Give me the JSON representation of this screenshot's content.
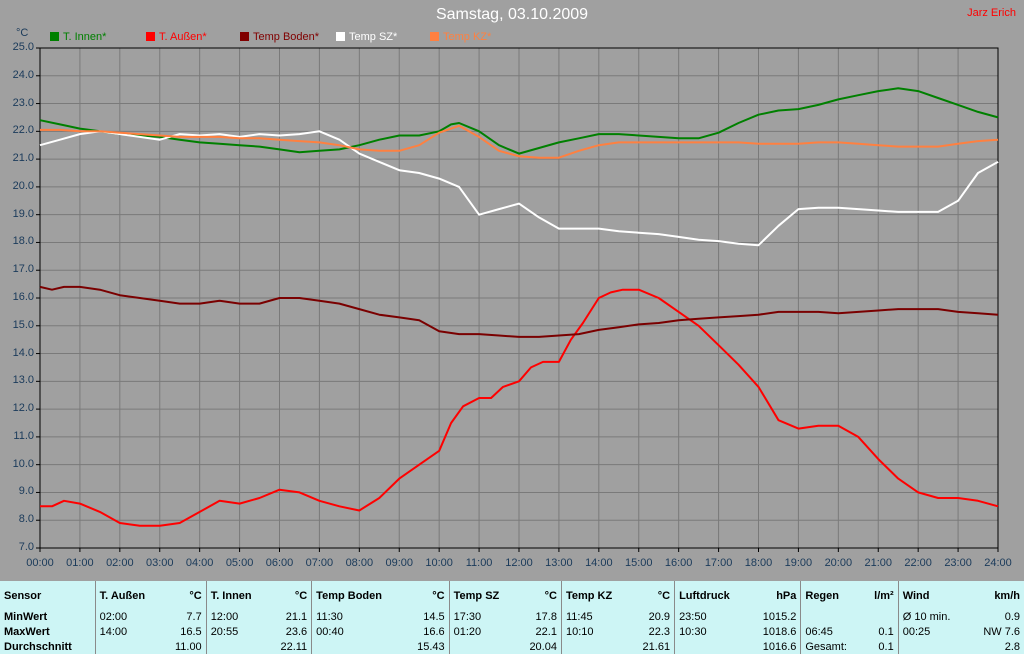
{
  "title": "Samstag, 03.10.2009",
  "author": "Jarz Erich",
  "chart_data": {
    "type": "line",
    "ylabel": "°C",
    "ylim": [
      7.0,
      25.0
    ],
    "yticks": [
      "7.0",
      "8.0",
      "9.0",
      "10.0",
      "11.0",
      "12.0",
      "13.0",
      "14.0",
      "15.0",
      "16.0",
      "17.0",
      "18.0",
      "19.0",
      "20.0",
      "21.0",
      "22.0",
      "23.0",
      "24.0",
      "25.0"
    ],
    "xlim": [
      0,
      24
    ],
    "xticks": [
      "00:00",
      "01:00",
      "02:00",
      "03:00",
      "04:00",
      "05:00",
      "06:00",
      "07:00",
      "08:00",
      "09:00",
      "10:00",
      "11:00",
      "12:00",
      "13:00",
      "14:00",
      "15:00",
      "16:00",
      "17:00",
      "18:00",
      "19:00",
      "20:00",
      "21:00",
      "22:00",
      "23:00",
      "24:00"
    ],
    "grid": true,
    "legend_position": "top-left",
    "series": [
      {
        "name": "T. Innen*",
        "color": "#008000",
        "legend_color": "#008000",
        "x": [
          0,
          0.5,
          1,
          1.5,
          2,
          2.5,
          3,
          3.5,
          4,
          4.5,
          5,
          5.5,
          6,
          6.5,
          7,
          7.5,
          8,
          8.5,
          9,
          9.5,
          10,
          10.3,
          10.5,
          11,
          11.5,
          12,
          12.5,
          13,
          13.5,
          14,
          14.5,
          15,
          15.5,
          16,
          16.5,
          17,
          17.5,
          18,
          18.5,
          19,
          19.5,
          20,
          20.5,
          21,
          21.5,
          22,
          22.5,
          23,
          23.5,
          24
        ],
        "y": [
          22.4,
          22.25,
          22.1,
          22.0,
          21.9,
          21.85,
          21.8,
          21.7,
          21.6,
          21.55,
          21.5,
          21.45,
          21.35,
          21.25,
          21.3,
          21.35,
          21.5,
          21.7,
          21.85,
          21.85,
          22.0,
          22.25,
          22.3,
          22.0,
          21.5,
          21.2,
          21.4,
          21.6,
          21.75,
          21.9,
          21.9,
          21.85,
          21.8,
          21.75,
          21.75,
          21.95,
          22.3,
          22.6,
          22.75,
          22.8,
          22.95,
          23.15,
          23.3,
          23.45,
          23.55,
          23.45,
          23.2,
          22.95,
          22.7,
          22.5
        ]
      },
      {
        "name": "T. Außen*",
        "color": "#ff0000",
        "legend_color": "#ff0000",
        "x": [
          0,
          0.3,
          0.6,
          1,
          1.5,
          2,
          2.5,
          3,
          3.5,
          4,
          4.5,
          5,
          5.5,
          6,
          6.5,
          7,
          7.5,
          8,
          8.5,
          9,
          9.5,
          10,
          10.3,
          10.6,
          11,
          11.3,
          11.6,
          12,
          12.3,
          12.6,
          13,
          13.3,
          13.6,
          14,
          14.3,
          14.6,
          15,
          15.5,
          16,
          16.5,
          17,
          17.5,
          18,
          18.5,
          19,
          19.5,
          20,
          20.5,
          21,
          21.5,
          22,
          22.5,
          23,
          23.5,
          24
        ],
        "y": [
          8.5,
          8.5,
          8.7,
          8.6,
          8.3,
          7.9,
          7.8,
          7.8,
          7.9,
          8.3,
          8.7,
          8.6,
          8.8,
          9.1,
          9.0,
          8.7,
          8.5,
          8.35,
          8.8,
          9.5,
          10.0,
          10.5,
          11.5,
          12.1,
          12.4,
          12.4,
          12.8,
          13.0,
          13.5,
          13.7,
          13.7,
          14.5,
          15.1,
          16.0,
          16.2,
          16.3,
          16.3,
          16.0,
          15.5,
          15.0,
          14.3,
          13.6,
          12.8,
          11.6,
          11.3,
          11.4,
          11.4,
          11.0,
          10.2,
          9.5,
          9.0,
          8.8,
          8.8,
          8.7,
          8.5
        ]
      },
      {
        "name": "Temp Boden*",
        "color": "#7a0000",
        "legend_color": "#800000",
        "x": [
          0,
          0.3,
          0.6,
          1,
          1.5,
          2,
          2.5,
          3,
          3.5,
          4,
          4.5,
          5,
          5.5,
          6,
          6.5,
          7,
          7.5,
          8,
          8.5,
          9,
          9.5,
          10,
          10.5,
          11,
          11.5,
          12,
          12.5,
          13,
          13.5,
          14,
          14.5,
          15,
          15.5,
          16,
          16.5,
          17,
          17.5,
          18,
          18.5,
          19,
          19.5,
          20,
          20.5,
          21,
          21.5,
          22,
          22.5,
          23,
          23.5,
          24
        ],
        "y": [
          16.4,
          16.3,
          16.4,
          16.4,
          16.3,
          16.1,
          16.0,
          15.9,
          15.8,
          15.8,
          15.9,
          15.8,
          15.8,
          16.0,
          16.0,
          15.9,
          15.8,
          15.6,
          15.4,
          15.3,
          15.2,
          14.8,
          14.7,
          14.7,
          14.65,
          14.6,
          14.6,
          14.65,
          14.7,
          14.85,
          14.95,
          15.05,
          15.1,
          15.2,
          15.25,
          15.3,
          15.35,
          15.4,
          15.5,
          15.5,
          15.5,
          15.45,
          15.5,
          15.55,
          15.6,
          15.6,
          15.6,
          15.5,
          15.45,
          15.4
        ]
      },
      {
        "name": "Temp SZ*",
        "color": "#ffffff",
        "legend_color": "#ffffff",
        "x": [
          0,
          0.5,
          1,
          1.5,
          2,
          2.5,
          3,
          3.5,
          4,
          4.5,
          5,
          5.5,
          6,
          6.5,
          7,
          7.5,
          8,
          8.5,
          9,
          9.5,
          10,
          10.5,
          11,
          11.5,
          12,
          12.5,
          13,
          13.5,
          14,
          14.5,
          15,
          15.5,
          16,
          16.5,
          17,
          17.5,
          18,
          18.5,
          19,
          19.5,
          20,
          20.5,
          21,
          21.5,
          22,
          22.5,
          23,
          23.5,
          24
        ],
        "y": [
          21.5,
          21.7,
          21.9,
          22.0,
          21.9,
          21.8,
          21.7,
          21.9,
          21.85,
          21.9,
          21.8,
          21.9,
          21.85,
          21.9,
          22.0,
          21.7,
          21.2,
          20.9,
          20.6,
          20.5,
          20.3,
          20.0,
          19.0,
          19.2,
          19.4,
          18.9,
          18.5,
          18.5,
          18.5,
          18.4,
          18.35,
          18.3,
          18.2,
          18.1,
          18.05,
          17.95,
          17.9,
          18.6,
          19.2,
          19.25,
          19.25,
          19.2,
          19.15,
          19.1,
          19.1,
          19.1,
          19.5,
          20.5,
          20.9
        ]
      },
      {
        "name": "Temp KZ*",
        "color": "#ff8040",
        "legend_color": "#ff8040",
        "x": [
          0,
          0.5,
          1,
          1.5,
          2,
          2.5,
          3,
          3.5,
          4,
          4.5,
          5,
          5.5,
          6,
          6.5,
          7,
          7.5,
          8,
          8.5,
          9,
          9.5,
          10,
          10.5,
          11,
          11.5,
          12,
          12.5,
          13,
          13.5,
          14,
          14.5,
          15,
          15.5,
          16,
          16.5,
          17,
          17.5,
          18,
          18.5,
          19,
          19.5,
          20,
          20.5,
          21,
          21.5,
          22,
          22.5,
          23,
          23.5,
          24
        ],
        "y": [
          22.05,
          22.05,
          22.0,
          22.0,
          21.95,
          21.9,
          21.85,
          21.8,
          21.8,
          21.8,
          21.75,
          21.75,
          21.7,
          21.65,
          21.6,
          21.5,
          21.35,
          21.3,
          21.3,
          21.5,
          21.95,
          22.2,
          21.8,
          21.3,
          21.1,
          21.05,
          21.05,
          21.3,
          21.5,
          21.6,
          21.6,
          21.6,
          21.6,
          21.6,
          21.6,
          21.6,
          21.55,
          21.55,
          21.55,
          21.6,
          21.6,
          21.55,
          21.5,
          21.45,
          21.45,
          21.45,
          21.55,
          21.65,
          21.7
        ]
      }
    ]
  },
  "stats": {
    "row_labels": {
      "sensor": "Sensor",
      "min": "MinWert",
      "max": "MaxWert",
      "avg": "Durchschnitt"
    },
    "groups": [
      {
        "name": "T. Außen",
        "unit": "°C",
        "min_time": "02:00",
        "min_val": "7.7",
        "max_time": "14:00",
        "max_val": "16.5",
        "avg": "11.00"
      },
      {
        "name": "T. Innen",
        "unit": "°C",
        "min_time": "12:00",
        "min_val": "21.1",
        "max_time": "20:55",
        "max_val": "23.6",
        "avg": "22.11"
      },
      {
        "name": "Temp Boden",
        "unit": "°C",
        "min_time": "11:30",
        "min_val": "14.5",
        "max_time": "00:40",
        "max_val": "16.6",
        "avg": "15.43"
      },
      {
        "name": "Temp SZ",
        "unit": "°C",
        "min_time": "17:30",
        "min_val": "17.8",
        "max_time": "01:20",
        "max_val": "22.1",
        "avg": "20.04"
      },
      {
        "name": "Temp KZ",
        "unit": "°C",
        "min_time": "11:45",
        "min_val": "20.9",
        "max_time": "10:10",
        "max_val": "22.3",
        "avg": "21.61"
      },
      {
        "name": "Luftdruck",
        "unit": "hPa",
        "min_time": "23:50",
        "min_val": "1015.2",
        "max_time": "10:30",
        "max_val": "1018.6",
        "avg": "1016.6"
      }
    ],
    "regen": {
      "name": "Regen",
      "unit": "l/m²",
      "max_time": "06:45",
      "max_val": "0.1",
      "avg_label": "Gesamt:",
      "avg": "0.1"
    },
    "wind": {
      "name": "Wind",
      "unit": "km/h",
      "min_time": "Ø 10 min.",
      "min_val": "0.9",
      "max_time": "00:25",
      "max_val": "NW 7.6",
      "avg": "2.8"
    }
  }
}
